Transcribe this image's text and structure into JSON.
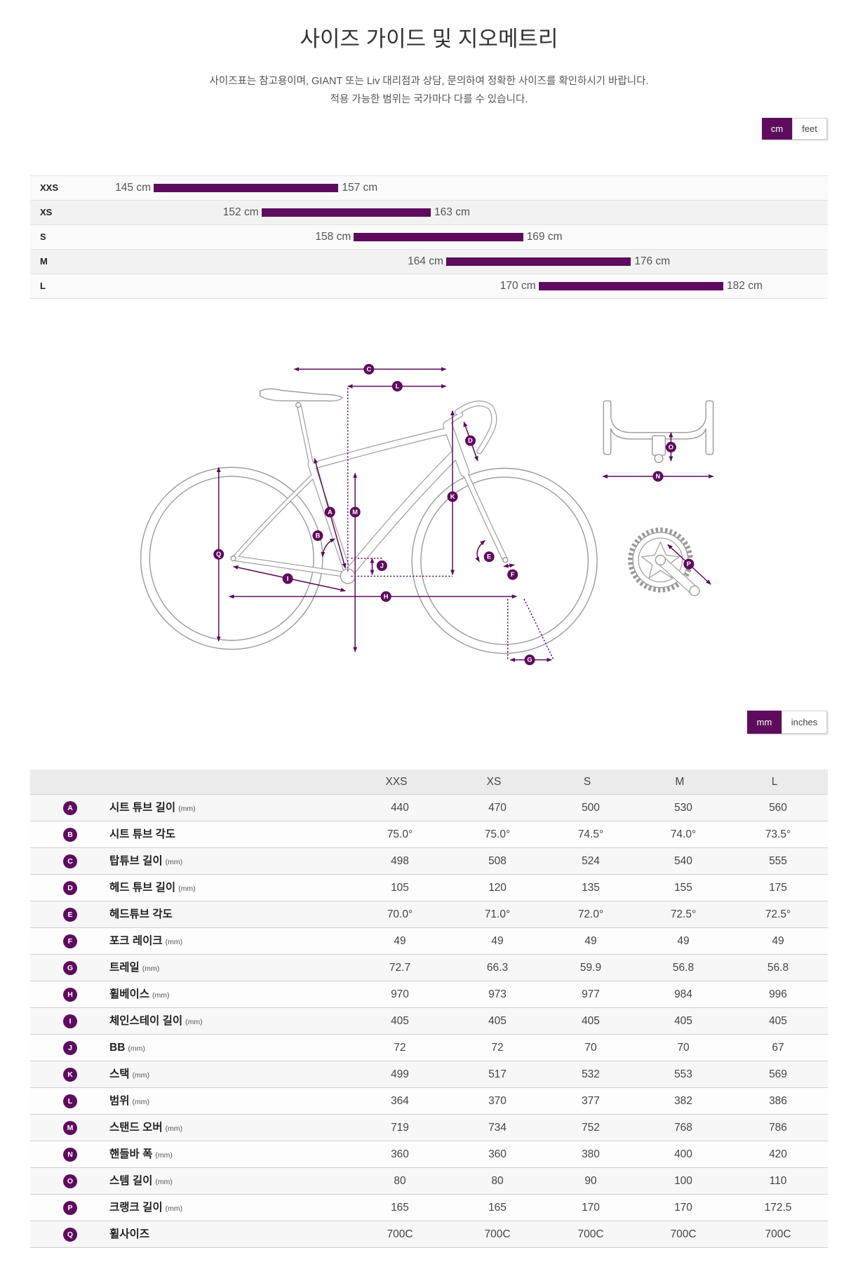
{
  "page": {
    "title": "사이즈 가이드 및 지오메트리",
    "intro_lines": [
      "사이즈표는 참고용이며, GIANT 또는 Liv 대리점과 상담, 문의하여 정확한 사이즈를 확인하시기 바랍니다.",
      "적용 가능한 범위는 국가마다 다를 수 있습니다."
    ]
  },
  "height_units": {
    "options": [
      "cm",
      "feet"
    ],
    "selected_index": 0
  },
  "rider_sizes": {
    "unit": "cm",
    "rows": [
      {
        "size": "XXS",
        "min": 145,
        "max": 157
      },
      {
        "size": "XS",
        "min": 152,
        "max": 163
      },
      {
        "size": "S",
        "min": 158,
        "max": 169
      },
      {
        "size": "M",
        "min": 164,
        "max": 176
      },
      {
        "size": "L",
        "min": 170,
        "max": 182
      }
    ]
  },
  "geometry_units": {
    "options": [
      "mm",
      "inches"
    ],
    "selected_index": 0
  },
  "geometry": {
    "sizes": [
      "XXS",
      "XS",
      "S",
      "M",
      "L"
    ],
    "rows": [
      {
        "letter": "A",
        "label": "시트 튜브 길이",
        "unit": "(mm)",
        "values": [
          "440",
          "470",
          "500",
          "530",
          "560"
        ]
      },
      {
        "letter": "B",
        "label": "시트 튜브 각도",
        "values": [
          "75.0°",
          "75.0°",
          "74.5°",
          "74.0°",
          "73.5°"
        ]
      },
      {
        "letter": "C",
        "label": "탑튜브 길이",
        "unit": "(mm)",
        "values": [
          "498",
          "508",
          "524",
          "540",
          "555"
        ]
      },
      {
        "letter": "D",
        "label": "헤드 튜브 길이",
        "unit": "(mm)",
        "values": [
          "105",
          "120",
          "135",
          "155",
          "175"
        ]
      },
      {
        "letter": "E",
        "label": "헤드튜브 각도",
        "values": [
          "70.0°",
          "71.0°",
          "72.0°",
          "72.5°",
          "72.5°"
        ]
      },
      {
        "letter": "F",
        "label": "포크 레이크",
        "unit": "(mm)",
        "values": [
          "49",
          "49",
          "49",
          "49",
          "49"
        ]
      },
      {
        "letter": "G",
        "label": "트레일",
        "unit": "(mm)",
        "values": [
          "72.7",
          "66.3",
          "59.9",
          "56.8",
          "56.8"
        ]
      },
      {
        "letter": "H",
        "label": "휠베이스",
        "unit": "(mm)",
        "values": [
          "970",
          "973",
          "977",
          "984",
          "996"
        ]
      },
      {
        "letter": "I",
        "label": "체인스테이 길이",
        "unit": "(mm)",
        "values": [
          "405",
          "405",
          "405",
          "405",
          "405"
        ]
      },
      {
        "letter": "J",
        "label": "BB",
        "unit": "(mm)",
        "values": [
          "72",
          "72",
          "70",
          "70",
          "67"
        ]
      },
      {
        "letter": "K",
        "label": "스택",
        "unit": "(mm)",
        "values": [
          "499",
          "517",
          "532",
          "553",
          "569"
        ]
      },
      {
        "letter": "L",
        "label": "범위",
        "unit": "(mm)",
        "values": [
          "364",
          "370",
          "377",
          "382",
          "386"
        ]
      },
      {
        "letter": "M",
        "label": "스탠드 오버",
        "unit": "(mm)",
        "values": [
          "719",
          "734",
          "752",
          "768",
          "786"
        ]
      },
      {
        "letter": "N",
        "label": "핸들바 폭",
        "unit": "(mm)",
        "values": [
          "360",
          "360",
          "380",
          "400",
          "420"
        ]
      },
      {
        "letter": "O",
        "label": "스템 길이",
        "unit": "(mm)",
        "values": [
          "80",
          "80",
          "90",
          "100",
          "110"
        ]
      },
      {
        "letter": "P",
        "label": "크랭크 길이",
        "unit": "(mm)",
        "values": [
          "165",
          "165",
          "170",
          "170",
          "172.5"
        ]
      },
      {
        "letter": "Q",
        "label": "휠사이즈",
        "values": [
          "700C",
          "700C",
          "700C",
          "700C",
          "700C"
        ]
      }
    ]
  },
  "colors": {
    "accent": "#5e0b5e",
    "bike_line": "#9a9a9a"
  }
}
